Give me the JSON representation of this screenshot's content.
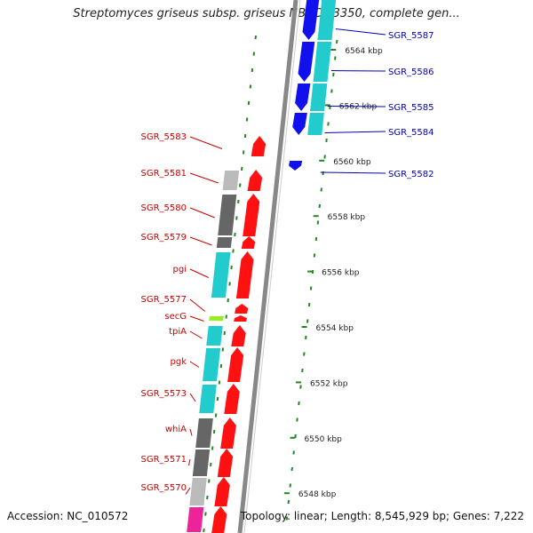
{
  "title": "Streptomyces griseus subsp. griseus NBRC 13350, complete gen...",
  "footer": {
    "accession": "Accession: NC_010572",
    "summary": "Topology: linear; Length: 8,545,929 bp; Genes: 7,222"
  },
  "colors": {
    "forward_gene": "#ff1111",
    "reverse_gene": "#1111ee",
    "forward_label": "#cc0000",
    "reverse_label": "#0000bb",
    "backbone": "#888888",
    "tick": "#228822",
    "cog_cyan": "#22cccc",
    "cog_darkgray": "#666666",
    "cog_lightgray": "#bbbbbb",
    "cog_lime": "#99ee22",
    "cog_magenta": "#ee2299"
  },
  "scale": {
    "unit": "kbp",
    "ticks": [
      {
        "label": "6564 kbp",
        "kbp": 6564
      },
      {
        "label": "6562 kbp",
        "kbp": 6562
      },
      {
        "label": "6560 kbp",
        "kbp": 6560
      },
      {
        "label": "6558 kbp",
        "kbp": 6558
      },
      {
        "label": "6556 kbp",
        "kbp": 6556
      },
      {
        "label": "6554 kbp",
        "kbp": 6554
      },
      {
        "label": "6552 kbp",
        "kbp": 6552
      },
      {
        "label": "6550 kbp",
        "kbp": 6550
      },
      {
        "label": "6548 kbp",
        "kbp": 6548
      }
    ]
  },
  "forward_genes": [
    {
      "name": "SGR_5583",
      "cog": "none"
    },
    {
      "name": "SGR_5581",
      "cog": "lightgray"
    },
    {
      "name": "SGR_5580",
      "cog": "darkgray"
    },
    {
      "name": "SGR_5579",
      "cog": "darkgray"
    },
    {
      "name": "pgi",
      "cog": "cyan"
    },
    {
      "name": "SGR_5577",
      "cog": "none"
    },
    {
      "name": "secG",
      "cog": "lime"
    },
    {
      "name": "tpiA",
      "cog": "cyan"
    },
    {
      "name": "pgk",
      "cog": "cyan"
    },
    {
      "name": "SGR_5573",
      "cog": "cyan"
    },
    {
      "name": "whiA",
      "cog": "darkgray"
    },
    {
      "name": "SGR_5571",
      "cog": "darkgray"
    },
    {
      "name": "SGR_5570",
      "cog": "lightgray"
    },
    {
      "name": "",
      "cog": "magenta"
    }
  ],
  "reverse_genes": [
    {
      "name": "SGR_5587",
      "cog": "cyan"
    },
    {
      "name": "SGR_5586",
      "cog": "cyan"
    },
    {
      "name": "SGR_5585",
      "cog": "cyan"
    },
    {
      "name": "SGR_5584",
      "cog": "cyan"
    },
    {
      "name": "SGR_5582",
      "cog": "none"
    }
  ]
}
